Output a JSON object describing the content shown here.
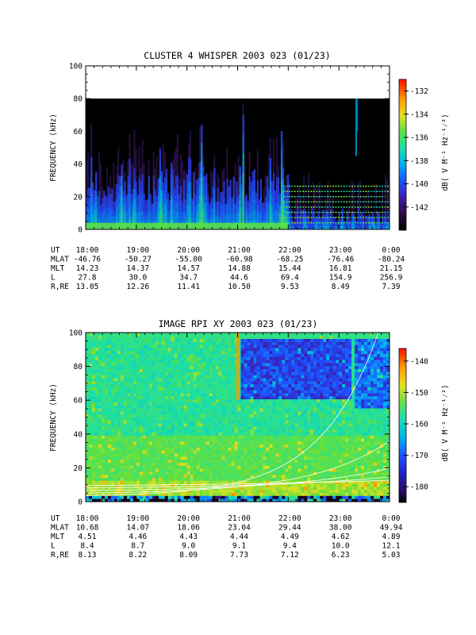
{
  "chart_data": [
    {
      "type": "heatmap",
      "title": "CLUSTER 4 WHISPER 2003 023 (01/23)",
      "ylabel": "FREQUENCY (kHz)",
      "ylim": [
        0,
        100
      ],
      "yticks": [
        "0",
        "20",
        "40",
        "60",
        "80",
        "100"
      ],
      "x_time_labels": [
        "18:00",
        "19:00",
        "20:00",
        "21:00",
        "22:00",
        "23:00",
        "0:00"
      ],
      "x_hours": [
        18,
        19,
        20,
        21,
        22,
        23,
        24
      ],
      "data_top_khz": 80,
      "colorbar": {
        "label": "dB( V M⁻¹ Hz⁻¹⁄²)",
        "range": [
          -144,
          -131
        ],
        "ticks": [
          "-132",
          "-134",
          "-136",
          "-138",
          "-140",
          "-142"
        ],
        "tick_values": [
          -132,
          -134,
          -136,
          -138,
          -140,
          -142
        ]
      },
      "ephemeris": [
        {
          "label": "UT",
          "values": [
            "18:00",
            "19:00",
            "20:00",
            "21:00",
            "22:00",
            "23:00",
            "0:00"
          ]
        },
        {
          "label": "MLAT",
          "values": [
            "-46.76",
            "-50.27",
            "-55.00",
            "-60.98",
            "-68.25",
            "-76.46",
            "-80.24"
          ]
        },
        {
          "label": "MLT",
          "values": [
            "14.23",
            "14.37",
            "14.57",
            "14.88",
            "15.44",
            "16.81",
            "21.15"
          ]
        },
        {
          "label": "L",
          "values": [
            "27.8",
            "30.0",
            "34.7",
            "44.6",
            "69.4",
            "154.9",
            "256.9"
          ]
        },
        {
          "label": "R,RE",
          "values": [
            "13.05",
            "12.26",
            "11.41",
            "10.50",
            "9.53",
            "8.49",
            "7.39"
          ]
        }
      ]
    },
    {
      "type": "heatmap",
      "title": "IMAGE RPI XY 2003 023 (01/23)",
      "ylabel": "FREQUENCY (kHz)",
      "ylim": [
        0,
        100
      ],
      "yticks": [
        "0",
        "20",
        "40",
        "60",
        "80",
        "100"
      ],
      "x_time_labels": [
        "18:00",
        "19:00",
        "20:00",
        "21:00",
        "22:00",
        "23:00",
        "0:00"
      ],
      "x_hours": [
        18,
        19,
        20,
        21,
        22,
        23,
        24
      ],
      "colorbar": {
        "label": "dB( V M⁻¹ Hz⁻¹⁄²)",
        "range": [
          -185,
          -136
        ],
        "ticks": [
          "-140",
          "-150",
          "-160",
          "-170",
          "-180"
        ],
        "tick_values": [
          -140,
          -150,
          -160,
          -170,
          -180
        ]
      },
      "ephemeris": [
        {
          "label": "UT",
          "values": [
            "18:00",
            "19:00",
            "20:00",
            "21:00",
            "22:00",
            "23:00",
            "0:00"
          ]
        },
        {
          "label": "MLAT",
          "values": [
            "10.68",
            "14.07",
            "18.06",
            "23.04",
            "29.44",
            "38.00",
            "49.94"
          ]
        },
        {
          "label": "MLT",
          "values": [
            "4.51",
            "4.46",
            "4.43",
            "4.44",
            "4.49",
            "4.62",
            "4.89"
          ]
        },
        {
          "label": "L",
          "values": [
            "8.4",
            "8.7",
            "9.0",
            "9.1",
            "9.4",
            "10.0",
            "12.1"
          ]
        },
        {
          "label": "R,RE",
          "values": [
            "8.13",
            "8.22",
            "8.09",
            "7.73",
            "7.12",
            "6.23",
            "5.03"
          ]
        }
      ]
    }
  ]
}
